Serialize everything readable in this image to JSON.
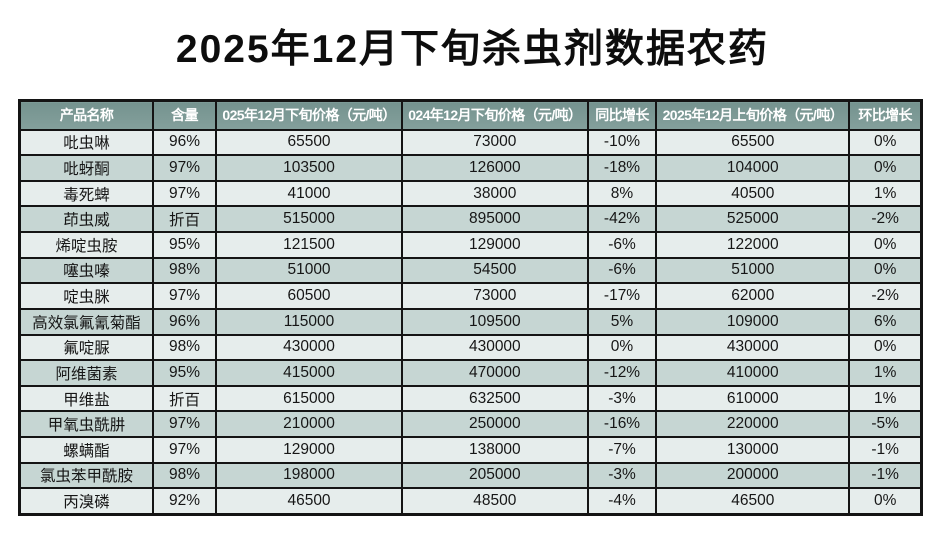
{
  "title": "2025年12月下旬杀虫剂数据农药",
  "colors": {
    "page_bg": "#ffffff",
    "title_text": "#0d0d0d",
    "border": "#141414",
    "header_bg": "#7c9a96",
    "header_text": "#ffffff",
    "row_light": "#e6edec",
    "row_dark": "#c6d6d3",
    "cell_text": "#161616"
  },
  "chart_data": {
    "type": "table",
    "title": "2025年12月下旬杀虫剂数据农药",
    "columns": [
      "产品名称",
      "含量",
      "025年12月下旬价格（元/吨）",
      "024年12月下旬价格（元/吨）",
      "同比增长",
      "2025年12月上旬价格（元/吨）",
      "环比增长"
    ],
    "rows": [
      [
        "吡虫啉",
        "96%",
        "65500",
        "73000",
        "-10%",
        "65500",
        "0%"
      ],
      [
        "吡蚜酮",
        "97%",
        "103500",
        "126000",
        "-18%",
        "104000",
        "0%"
      ],
      [
        "毒死蜱",
        "97%",
        "41000",
        "38000",
        "8%",
        "40500",
        "1%"
      ],
      [
        "茚虫威",
        "折百",
        "515000",
        "895000",
        "-42%",
        "525000",
        "-2%"
      ],
      [
        "烯啶虫胺",
        "95%",
        "121500",
        "129000",
        "-6%",
        "122000",
        "0%"
      ],
      [
        "噻虫嗪",
        "98%",
        "51000",
        "54500",
        "-6%",
        "51000",
        "0%"
      ],
      [
        "啶虫脒",
        "97%",
        "60500",
        "73000",
        "-17%",
        "62000",
        "-2%"
      ],
      [
        "高效氯氟氰菊酯",
        "96%",
        "115000",
        "109500",
        "5%",
        "109000",
        "6%"
      ],
      [
        "氟啶脲",
        "98%",
        "430000",
        "430000",
        "0%",
        "430000",
        "0%"
      ],
      [
        "阿维菌素",
        "95%",
        "415000",
        "470000",
        "-12%",
        "410000",
        "1%"
      ],
      [
        "甲维盐",
        "折百",
        "615000",
        "632500",
        "-3%",
        "610000",
        "1%"
      ],
      [
        "甲氧虫酰肼",
        "97%",
        "210000",
        "250000",
        "-16%",
        "220000",
        "-5%"
      ],
      [
        "螺螨酯",
        "97%",
        "129000",
        "138000",
        "-7%",
        "130000",
        "-1%"
      ],
      [
        "氯虫苯甲酰胺",
        "98%",
        "198000",
        "205000",
        "-3%",
        "200000",
        "-1%"
      ],
      [
        "丙溴磷",
        "92%",
        "46500",
        "48500",
        "-4%",
        "46500",
        "0%"
      ]
    ]
  }
}
